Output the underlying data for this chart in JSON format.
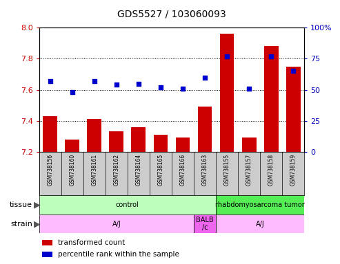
{
  "title": "GDS5527 / 103060093",
  "samples": [
    "GSM738156",
    "GSM738160",
    "GSM738161",
    "GSM738162",
    "GSM738164",
    "GSM738165",
    "GSM738166",
    "GSM738163",
    "GSM738155",
    "GSM738157",
    "GSM738158",
    "GSM738159"
  ],
  "transformed_count": [
    7.43,
    7.28,
    7.41,
    7.33,
    7.36,
    7.31,
    7.29,
    7.49,
    7.96,
    7.29,
    7.88,
    7.75
  ],
  "percentile_rank": [
    57,
    48,
    57,
    54,
    55,
    52,
    51,
    60,
    77,
    51,
    77,
    65
  ],
  "ymin": 7.2,
  "ymax": 8.0,
  "yticks": [
    7.2,
    7.4,
    7.6,
    7.8,
    8.0
  ],
  "y2min": 0,
  "y2max": 100,
  "y2ticks": [
    0,
    25,
    50,
    75,
    100
  ],
  "y2ticklabels": [
    "0",
    "25",
    "50",
    "75",
    "100%"
  ],
  "bar_color": "#cc0000",
  "dot_color": "#0000cc",
  "tissue_labels": [
    "control",
    "rhabdomyosarcoma tumor"
  ],
  "tissue_starts": [
    0,
    8
  ],
  "tissue_ends": [
    8,
    12
  ],
  "tissue_colors": [
    "#bbffbb",
    "#55ee55"
  ],
  "strain_labels": [
    "A/J",
    "BALB\n/c",
    "A/J"
  ],
  "strain_starts": [
    0,
    7,
    8
  ],
  "strain_ends": [
    7,
    8,
    12
  ],
  "strain_colors": [
    "#ffbbff",
    "#ee66ee",
    "#ffbbff"
  ],
  "legend_items": [
    {
      "color": "#cc0000",
      "label": "transformed count"
    },
    {
      "color": "#0000cc",
      "label": "percentile rank within the sample"
    }
  ],
  "axis_color_left": "#cc0000",
  "axis_color_right": "#0000bb",
  "xtick_bg_color": "#cccccc",
  "tissue_label": "tissue",
  "strain_label": "strain"
}
